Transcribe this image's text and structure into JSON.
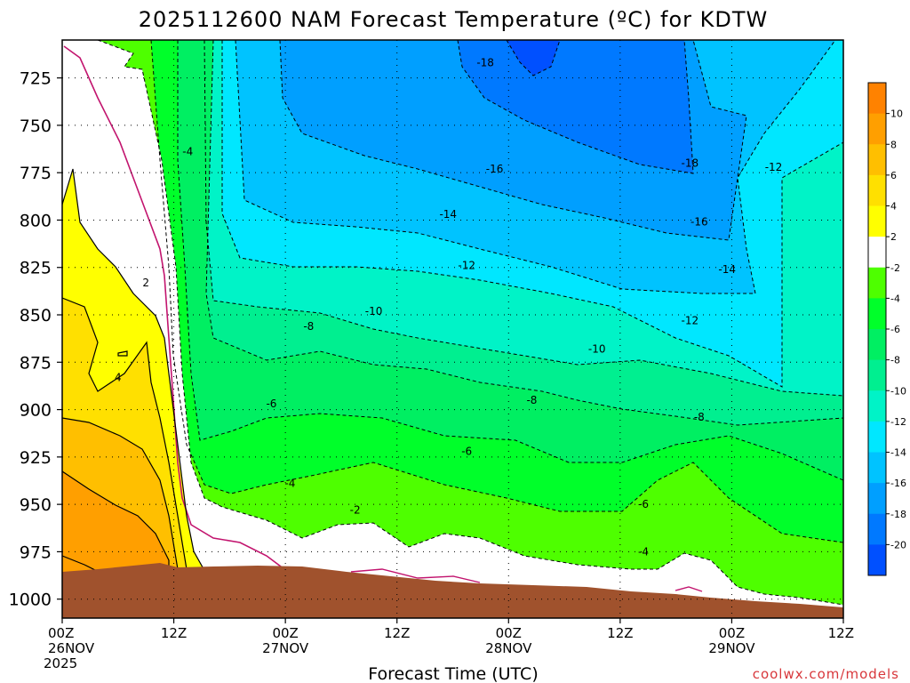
{
  "chart_data": {
    "type": "heatmap",
    "title": "2025112600 NAM Forecast Temperature (ºC) for KDTW",
    "xlabel": "Forecast Time (UTC)",
    "credit": "coolwx.com/models",
    "x_ticks": [
      {
        "hour": 0,
        "line1": "00Z",
        "line2": "26NOV",
        "line3": "2025"
      },
      {
        "hour": 12,
        "line1": "12Z",
        "line2": "",
        "line3": ""
      },
      {
        "hour": 24,
        "line1": "00Z",
        "line2": "27NOV",
        "line3": ""
      },
      {
        "hour": 36,
        "line1": "12Z",
        "line2": "",
        "line3": ""
      },
      {
        "hour": 48,
        "line1": "00Z",
        "line2": "28NOV",
        "line3": ""
      },
      {
        "hour": 60,
        "line1": "12Z",
        "line2": "",
        "line3": ""
      },
      {
        "hour": 72,
        "line1": "00Z",
        "line2": "29NOV",
        "line3": ""
      },
      {
        "hour": 84,
        "line1": "12Z",
        "line2": "",
        "line3": ""
      }
    ],
    "xlim": [
      0,
      84
    ],
    "y_ticks": [
      "725",
      "750",
      "775",
      "800",
      "825",
      "850",
      "875",
      "900",
      "925",
      "950",
      "975",
      "1000"
    ],
    "ylim": [
      1010,
      705
    ],
    "y_unit": "hPa",
    "colorbar": {
      "labels": [
        "10",
        "8",
        "6",
        "4",
        "2",
        "-2",
        "-4",
        "-6",
        "-8",
        "-10",
        "-12",
        "-14",
        "-16",
        "-18",
        "-20"
      ],
      "bins": [
        {
          "min": 10,
          "max": 12,
          "color": "#ff8200"
        },
        {
          "min": 8,
          "max": 10,
          "color": "#ff9f00"
        },
        {
          "min": 6,
          "max": 8,
          "color": "#ffbf00"
        },
        {
          "min": 4,
          "max": 6,
          "color": "#ffe000"
        },
        {
          "min": 2,
          "max": 4,
          "color": "#ffff00"
        },
        {
          "min": -2,
          "max": 2,
          "color": "#ffffff"
        },
        {
          "min": -4,
          "max": -2,
          "color": "#4eff00"
        },
        {
          "min": -6,
          "max": -4,
          "color": "#00ff2a"
        },
        {
          "min": -8,
          "max": -6,
          "color": "#00ef62"
        },
        {
          "min": -10,
          "max": -8,
          "color": "#00ef90"
        },
        {
          "min": -12,
          "max": -10,
          "color": "#00f3c7"
        },
        {
          "min": -14,
          "max": -12,
          "color": "#00e7ff"
        },
        {
          "min": -16,
          "max": -14,
          "color": "#00c3ff"
        },
        {
          "min": -18,
          "max": -16,
          "color": "#009fff"
        },
        {
          "min": -20,
          "max": -18,
          "color": "#0079ff"
        },
        {
          "min": -22,
          "max": -20,
          "color": "#0050ff"
        }
      ]
    },
    "ground_color": "#a0522d",
    "freezing_line_color": "#c2146e",
    "contour_labels": [
      {
        "value": "-18",
        "hour": 45.5,
        "p": 717
      },
      {
        "value": "-18",
        "hour": 67.5,
        "p": 770
      },
      {
        "value": "-16",
        "hour": 46.5,
        "p": 773
      },
      {
        "value": "-16",
        "hour": 68.5,
        "p": 801
      },
      {
        "value": "-14",
        "hour": 41.5,
        "p": 797
      },
      {
        "value": "-14",
        "hour": 71.5,
        "p": 826
      },
      {
        "value": "-12",
        "hour": 43.5,
        "p": 824
      },
      {
        "value": "-12",
        "hour": 76.5,
        "p": 772
      },
      {
        "value": "-12",
        "hour": 67.5,
        "p": 853
      },
      {
        "value": "-10",
        "hour": 33.5,
        "p": 848
      },
      {
        "value": "-10",
        "hour": 57.5,
        "p": 868
      },
      {
        "value": "-8",
        "hour": 26.5,
        "p": 856
      },
      {
        "value": "-8",
        "hour": 50.5,
        "p": 895
      },
      {
        "value": "-8",
        "hour": 68.5,
        "p": 904
      },
      {
        "value": "-6",
        "hour": 22.5,
        "p": 897
      },
      {
        "value": "-6",
        "hour": 43.5,
        "p": 922
      },
      {
        "value": "-6",
        "hour": 62.5,
        "p": 950
      },
      {
        "value": "-4",
        "hour": 13.5,
        "p": 764
      },
      {
        "value": "-4",
        "hour": 24.5,
        "p": 939
      },
      {
        "value": "-4",
        "hour": 62.5,
        "p": 975
      },
      {
        "value": "-2",
        "hour": 31.5,
        "p": 953
      },
      {
        "value": "2",
        "hour": 9,
        "p": 833
      },
      {
        "value": "4",
        "hour": 6,
        "p": 883
      }
    ]
  }
}
